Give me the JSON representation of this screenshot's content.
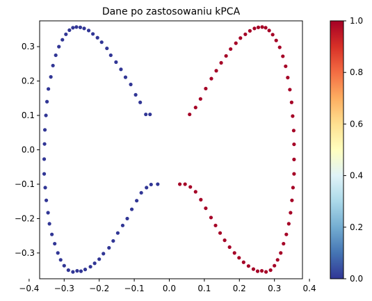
{
  "chart_data": {
    "type": "scatter",
    "title": "Dane po zastosowaniu kPCA",
    "xlabel": "",
    "ylabel": "",
    "xlim": [
      -0.37,
      0.38
    ],
    "ylim": [
      -0.375,
      0.375
    ],
    "xticks": [
      -0.4,
      -0.3,
      -0.2,
      -0.1,
      0.0,
      0.1,
      0.2,
      0.3,
      0.4
    ],
    "yticks": [
      -0.3,
      -0.2,
      -0.1,
      0.0,
      0.1,
      0.2,
      0.3
    ],
    "xtick_labels": [
      "−0.4",
      "−0.3",
      "−0.2",
      "−0.1",
      "0.0",
      "0.1",
      "0.2",
      "0.3",
      "0.4"
    ],
    "ytick_labels": [
      "−0.3",
      "−0.2",
      "−0.1",
      "0.0",
      "0.1",
      "0.2",
      "0.3"
    ],
    "grid": false,
    "colormap": "RdYlBu_r",
    "colorbar": {
      "min": 0.0,
      "max": 1.0,
      "ticks": [
        0.0,
        0.2,
        0.4,
        0.6,
        0.8,
        1.0
      ],
      "tick_labels": [
        "0.0",
        "0.2",
        "0.4",
        "0.6",
        "0.8",
        "1.0"
      ]
    },
    "series": [
      {
        "value": 0.0,
        "color": "#313695",
        "points": [
          [
            -0.265,
            0.357
          ],
          [
            -0.254,
            0.356
          ],
          [
            -0.275,
            0.355
          ],
          [
            -0.285,
            0.348
          ],
          [
            -0.243,
            0.353
          ],
          [
            -0.295,
            0.336
          ],
          [
            -0.23,
            0.347
          ],
          [
            -0.305,
            0.32
          ],
          [
            -0.218,
            0.337
          ],
          [
            -0.315,
            0.3
          ],
          [
            -0.205,
            0.326
          ],
          [
            -0.324,
            0.275
          ],
          [
            -0.193,
            0.313
          ],
          [
            -0.332,
            0.245
          ],
          [
            -0.178,
            0.295
          ],
          [
            -0.338,
            0.212
          ],
          [
            -0.167,
            0.275
          ],
          [
            -0.345,
            0.177
          ],
          [
            -0.152,
            0.255
          ],
          [
            -0.349,
            0.14
          ],
          [
            -0.138,
            0.234
          ],
          [
            -0.352,
            0.1
          ],
          [
            -0.125,
            0.211
          ],
          [
            -0.355,
            0.058
          ],
          [
            -0.11,
            0.19
          ],
          [
            -0.356,
            0.017
          ],
          [
            -0.096,
            0.16
          ],
          [
            -0.357,
            -0.027
          ],
          [
            -0.083,
            0.138
          ],
          [
            -0.357,
            -0.07
          ],
          [
            -0.067,
            0.103
          ],
          [
            -0.354,
            -0.11
          ],
          [
            -0.055,
            0.103
          ],
          [
            -0.351,
            -0.147
          ],
          [
            -0.346,
            -0.183
          ],
          [
            -0.342,
            -0.215
          ],
          [
            -0.335,
            -0.246
          ],
          [
            -0.327,
            -0.273
          ],
          [
            -0.318,
            -0.3
          ],
          [
            -0.31,
            -0.32
          ],
          [
            -0.3,
            -0.337
          ],
          [
            -0.288,
            -0.35
          ],
          [
            -0.275,
            -0.355
          ],
          [
            -0.263,
            -0.352
          ],
          [
            -0.252,
            -0.353
          ],
          [
            -0.24,
            -0.348
          ],
          [
            -0.225,
            -0.34
          ],
          [
            -0.213,
            -0.33
          ],
          [
            -0.2,
            -0.318
          ],
          [
            -0.188,
            -0.302
          ],
          [
            -0.172,
            -0.285
          ],
          [
            -0.16,
            -0.265
          ],
          [
            -0.147,
            -0.242
          ],
          [
            -0.133,
            -0.22
          ],
          [
            -0.12,
            -0.2
          ],
          [
            -0.107,
            -0.173
          ],
          [
            -0.093,
            -0.148
          ],
          [
            -0.08,
            -0.125
          ],
          [
            -0.065,
            -0.11
          ],
          [
            -0.052,
            -0.101
          ],
          [
            -0.033,
            -0.1
          ]
        ]
      },
      {
        "value": 1.0,
        "color": "#a50026",
        "points": [
          [
            0.265,
            0.357
          ],
          [
            0.254,
            0.356
          ],
          [
            0.275,
            0.355
          ],
          [
            0.285,
            0.347
          ],
          [
            0.243,
            0.353
          ],
          [
            0.295,
            0.335
          ],
          [
            0.23,
            0.346
          ],
          [
            0.305,
            0.318
          ],
          [
            0.217,
            0.336
          ],
          [
            0.315,
            0.298
          ],
          [
            0.203,
            0.325
          ],
          [
            0.324,
            0.272
          ],
          [
            0.19,
            0.31
          ],
          [
            0.332,
            0.243
          ],
          [
            0.175,
            0.293
          ],
          [
            0.338,
            0.21
          ],
          [
            0.162,
            0.273
          ],
          [
            0.344,
            0.175
          ],
          [
            0.148,
            0.253
          ],
          [
            0.349,
            0.138
          ],
          [
            0.134,
            0.23
          ],
          [
            0.352,
            0.098
          ],
          [
            0.12,
            0.207
          ],
          [
            0.355,
            0.056
          ],
          [
            0.104,
            0.178
          ],
          [
            0.356,
            0.016
          ],
          [
            0.089,
            0.148
          ],
          [
            0.356,
            -0.028
          ],
          [
            0.075,
            0.123
          ],
          [
            0.356,
            -0.07
          ],
          [
            0.058,
            0.103
          ],
          [
            0.353,
            -0.11
          ],
          [
            0.35,
            -0.147
          ],
          [
            0.346,
            -0.183
          ],
          [
            0.341,
            -0.215
          ],
          [
            0.334,
            -0.246
          ],
          [
            0.326,
            -0.273
          ],
          [
            0.318,
            -0.3
          ],
          [
            0.309,
            -0.32
          ],
          [
            0.3,
            -0.337
          ],
          [
            0.289,
            -0.35
          ],
          [
            0.276,
            -0.355
          ],
          [
            0.264,
            -0.352
          ],
          [
            0.252,
            -0.353
          ],
          [
            0.24,
            -0.347
          ],
          [
            0.226,
            -0.338
          ],
          [
            0.212,
            -0.327
          ],
          [
            0.199,
            -0.314
          ],
          [
            0.186,
            -0.3
          ],
          [
            0.172,
            -0.283
          ],
          [
            0.158,
            -0.263
          ],
          [
            0.145,
            -0.242
          ],
          [
            0.132,
            -0.22
          ],
          [
            0.119,
            -0.197
          ],
          [
            0.104,
            -0.17
          ],
          [
            0.09,
            -0.145
          ],
          [
            0.075,
            -0.122
          ],
          [
            0.06,
            -0.108
          ],
          [
            0.045,
            -0.1
          ],
          [
            0.03,
            -0.1
          ]
        ]
      }
    ]
  }
}
